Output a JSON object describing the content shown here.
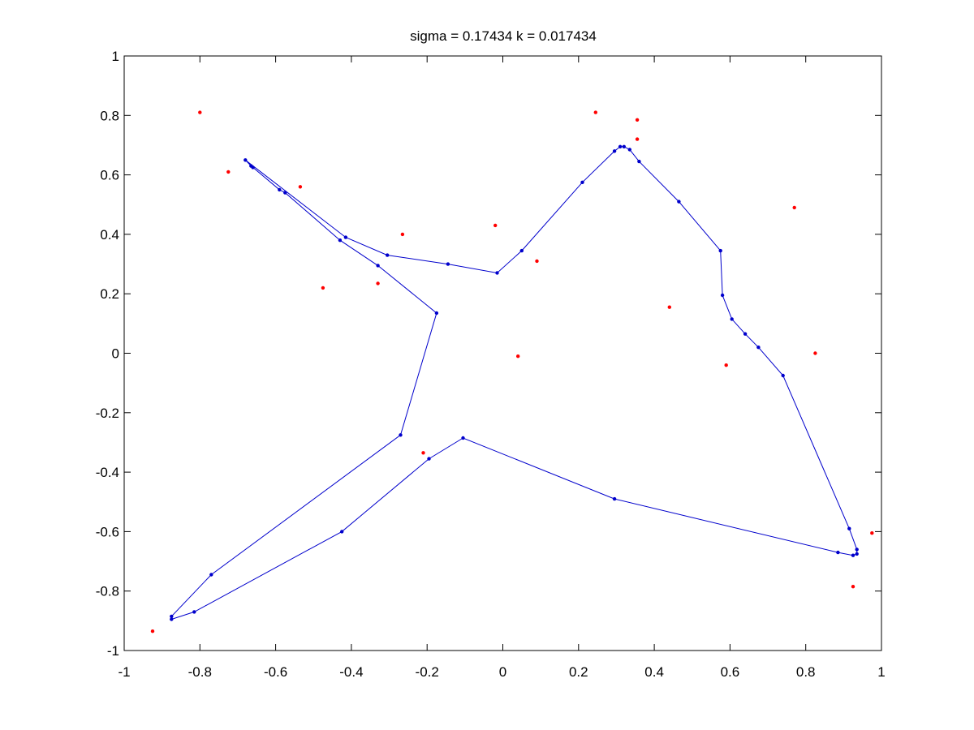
{
  "chart_data": {
    "type": "scatter",
    "title": "sigma = 0.17434 k = 0.017434",
    "xlabel": "",
    "ylabel": "",
    "xlim": [
      -1,
      1
    ],
    "ylim": [
      -1,
      1
    ],
    "x_ticks": [
      -1,
      -0.8,
      -0.6,
      -0.4,
      -0.2,
      0,
      0.2,
      0.4,
      0.6,
      0.8,
      1
    ],
    "x_tick_labels": [
      "-1",
      "-0.8",
      "-0.6",
      "-0.4",
      "-0.2",
      "0",
      "0.2",
      "0.4",
      "0.6",
      "0.8",
      "1"
    ],
    "y_ticks": [
      -1,
      -0.8,
      -0.6,
      -0.4,
      -0.2,
      0,
      0.2,
      0.4,
      0.6,
      0.8,
      1
    ],
    "y_tick_labels": [
      "-1",
      "-0.8",
      "-0.6",
      "-0.4",
      "-0.2",
      "0",
      "0.2",
      "0.4",
      "0.6",
      "0.8",
      "1"
    ],
    "grid": false,
    "legend": "none",
    "series": [
      {
        "kind": "points",
        "color": "#ff0000",
        "marker": "dot",
        "points": [
          [
            -0.8,
            0.81
          ],
          [
            -0.725,
            0.61
          ],
          [
            -0.535,
            0.56
          ],
          [
            -0.475,
            0.22
          ],
          [
            -0.33,
            0.235
          ],
          [
            -0.265,
            0.4
          ],
          [
            -0.21,
            -0.335
          ],
          [
            -0.925,
            -0.935
          ],
          [
            -0.02,
            0.43
          ],
          [
            0.04,
            -0.01
          ],
          [
            0.09,
            0.31
          ],
          [
            0.245,
            0.81
          ],
          [
            0.355,
            0.785
          ],
          [
            0.355,
            0.72
          ],
          [
            0.44,
            0.155
          ],
          [
            0.59,
            -0.04
          ],
          [
            0.77,
            0.49
          ],
          [
            0.825,
            0.0
          ],
          [
            0.975,
            -0.605
          ],
          [
            0.925,
            -0.785
          ]
        ]
      },
      {
        "kind": "polyline",
        "color": "#0000cc",
        "marker": "dot",
        "closed": true,
        "points": [
          [
            -0.68,
            0.65
          ],
          [
            -0.665,
            0.63
          ],
          [
            -0.66,
            0.625
          ],
          [
            -0.59,
            0.55
          ],
          [
            -0.575,
            0.54
          ],
          [
            -0.43,
            0.38
          ],
          [
            -0.33,
            0.295
          ],
          [
            -0.175,
            0.135
          ],
          [
            -0.27,
            -0.275
          ],
          [
            -0.77,
            -0.745
          ],
          [
            -0.875,
            -0.885
          ],
          [
            -0.875,
            -0.895
          ],
          [
            -0.815,
            -0.87
          ],
          [
            -0.425,
            -0.6
          ],
          [
            -0.195,
            -0.355
          ],
          [
            -0.105,
            -0.285
          ],
          [
            0.295,
            -0.49
          ],
          [
            0.885,
            -0.67
          ],
          [
            0.925,
            -0.68
          ],
          [
            0.935,
            -0.675
          ],
          [
            0.935,
            -0.66
          ],
          [
            0.915,
            -0.59
          ],
          [
            0.74,
            -0.075
          ],
          [
            0.675,
            0.02
          ],
          [
            0.64,
            0.065
          ],
          [
            0.605,
            0.115
          ],
          [
            0.58,
            0.195
          ],
          [
            0.575,
            0.345
          ],
          [
            0.465,
            0.51
          ],
          [
            0.36,
            0.645
          ],
          [
            0.335,
            0.685
          ],
          [
            0.32,
            0.695
          ],
          [
            0.31,
            0.695
          ],
          [
            0.295,
            0.68
          ],
          [
            0.21,
            0.575
          ],
          [
            0.05,
            0.345
          ],
          [
            -0.015,
            0.27
          ],
          [
            -0.145,
            0.3
          ],
          [
            -0.305,
            0.33
          ],
          [
            -0.415,
            0.39
          ]
        ]
      }
    ]
  }
}
